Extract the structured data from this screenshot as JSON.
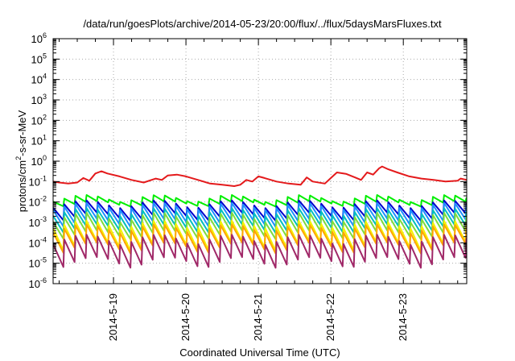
{
  "chart_data": {
    "type": "line",
    "title": "/data/run/goesPlots/archive/2014-05-23/20:00/flux/../flux/5daysMarsFluxes.txt",
    "xlabel": "Coordinated Universal Time (UTC)",
    "ylabel": {
      "pre": "protons/cm",
      "sup": "2",
      "post": "-s-sr-MeV"
    },
    "yscale": "log",
    "ylim": [
      1e-06,
      1000000.0
    ],
    "xlim": [
      "2014-05-18T04:00",
      "2014-05-23T21:00"
    ],
    "grid": true,
    "legend": "none",
    "y_ticks": [
      {
        "base": "10",
        "exp": "-6"
      },
      {
        "base": "10",
        "exp": "-5"
      },
      {
        "base": "10",
        "exp": "-4"
      },
      {
        "base": "10",
        "exp": "-3"
      },
      {
        "base": "10",
        "exp": "-2"
      },
      {
        "base": "10",
        "exp": "-1"
      },
      {
        "base": "10",
        "exp": "0"
      },
      {
        "base": "10",
        "exp": "1"
      },
      {
        "base": "10",
        "exp": "2"
      },
      {
        "base": "10",
        "exp": "3"
      },
      {
        "base": "10",
        "exp": "4"
      },
      {
        "base": "10",
        "exp": "5"
      },
      {
        "base": "10",
        "exp": "6"
      }
    ],
    "x_ticks": [
      "2014-5-19",
      "2014-5-20",
      "2014-5-21",
      "2014-5-22",
      "2014-5-23"
    ],
    "series": [
      {
        "color": "#e41a1c",
        "values": [
          [
            "2014-05-18T04:00",
            0.1
          ],
          [
            "2014-05-18T06:00",
            0.09
          ],
          [
            "2014-05-18T09:00",
            0.08
          ],
          [
            "2014-05-18T12:00",
            0.09
          ],
          [
            "2014-05-18T14:00",
            0.15
          ],
          [
            "2014-05-18T16:00",
            0.11
          ],
          [
            "2014-05-18T18:00",
            0.25
          ],
          [
            "2014-05-18T20:00",
            0.32
          ],
          [
            "2014-05-18T22:00",
            0.25
          ],
          [
            "2014-05-19T02:00",
            0.18
          ],
          [
            "2014-05-19T06:00",
            0.12
          ],
          [
            "2014-05-19T10:00",
            0.09
          ],
          [
            "2014-05-19T14:00",
            0.14
          ],
          [
            "2014-05-19T16:00",
            0.12
          ],
          [
            "2014-05-19T18:00",
            0.2
          ],
          [
            "2014-05-19T21:00",
            0.22
          ],
          [
            "2014-05-20T00:00",
            0.18
          ],
          [
            "2014-05-20T04:00",
            0.12
          ],
          [
            "2014-05-20T08:00",
            0.08
          ],
          [
            "2014-05-20T12:00",
            0.07
          ],
          [
            "2014-05-20T16:00",
            0.06
          ],
          [
            "2014-05-20T18:00",
            0.07
          ],
          [
            "2014-05-20T20:00",
            0.12
          ],
          [
            "2014-05-20T22:00",
            0.1
          ],
          [
            "2014-05-21T00:00",
            0.18
          ],
          [
            "2014-05-21T02:00",
            0.15
          ],
          [
            "2014-05-21T06:00",
            0.1
          ],
          [
            "2014-05-21T10:00",
            0.08
          ],
          [
            "2014-05-21T14:00",
            0.07
          ],
          [
            "2014-05-21T16:00",
            0.16
          ],
          [
            "2014-05-21T18:00",
            0.1
          ],
          [
            "2014-05-21T22:00",
            0.08
          ],
          [
            "2014-05-22T00:00",
            0.15
          ],
          [
            "2014-05-22T02:00",
            0.28
          ],
          [
            "2014-05-22T05:00",
            0.24
          ],
          [
            "2014-05-22T08:00",
            0.16
          ],
          [
            "2014-05-22T10:00",
            0.12
          ],
          [
            "2014-05-22T12:00",
            0.28
          ],
          [
            "2014-05-22T14:00",
            0.22
          ],
          [
            "2014-05-22T16:00",
            0.45
          ],
          [
            "2014-05-22T17:00",
            0.55
          ],
          [
            "2014-05-22T19:00",
            0.4
          ],
          [
            "2014-05-22T22:00",
            0.28
          ],
          [
            "2014-05-23T02:00",
            0.18
          ],
          [
            "2014-05-23T06:00",
            0.14
          ],
          [
            "2014-05-23T10:00",
            0.12
          ],
          [
            "2014-05-23T14:00",
            0.1
          ],
          [
            "2014-05-23T18:00",
            0.11
          ],
          [
            "2014-05-23T19:00",
            0.14
          ],
          [
            "2014-05-23T21:00",
            0.12
          ]
        ]
      },
      {
        "color": "#00ee00",
        "sawtooth": {
          "high": [
            0.01,
            0.022
          ],
          "low": [
            0.006,
            0.011
          ]
        }
      },
      {
        "color": "#0000cc",
        "sawtooth": {
          "high": [
            0.005,
            0.012
          ],
          "low": [
            0.0012,
            0.003
          ]
        }
      },
      {
        "color": "#1e90ff",
        "sawtooth": {
          "high": [
            0.004,
            0.009
          ],
          "low": [
            0.0006,
            0.0015
          ]
        }
      },
      {
        "color": "#00bfbf",
        "sawtooth": {
          "high": [
            0.002,
            0.005
          ],
          "low": [
            0.0003,
            0.0008
          ]
        }
      },
      {
        "color": "#7fdc3c",
        "sawtooth": {
          "high": [
            0.001,
            0.003
          ],
          "low": [
            0.00015,
            0.0004
          ]
        }
      },
      {
        "color": "#f5f000",
        "sawtooth": {
          "high": [
            0.0005,
            0.0012
          ],
          "low": [
            4e-05,
            0.00012
          ]
        }
      },
      {
        "color": "#ffa500",
        "sawtooth": {
          "high": [
            0.0003,
            0.0008
          ],
          "low": [
            3e-05,
            0.0001
          ]
        }
      },
      {
        "color": "#a02868",
        "sawtooth": {
          "high": [
            8e-05,
            0.00025
          ],
          "low": [
            6e-06,
            2e-05
          ]
        }
      }
    ]
  }
}
